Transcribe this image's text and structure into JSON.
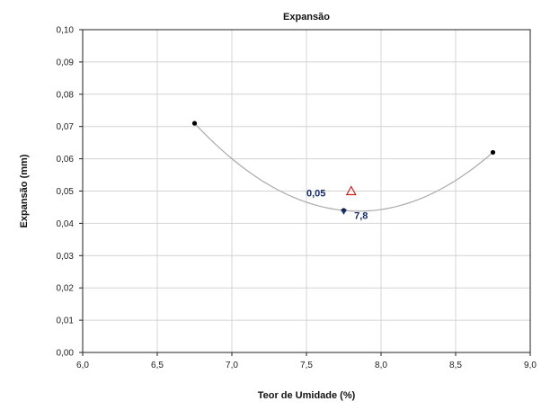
{
  "chart_data": {
    "type": "scatter",
    "title": "Expansão",
    "xlabel": "Teor de Umidade (%)",
    "ylabel": "Expansão (mm)",
    "xlim": [
      6.0,
      9.0
    ],
    "ylim": [
      0.0,
      0.1
    ],
    "x_ticks": [
      "6,0",
      "6,5",
      "7,0",
      "7,5",
      "8,0",
      "8,5",
      "9,0"
    ],
    "y_ticks": [
      "0,00",
      "0,01",
      "0,02",
      "0,03",
      "0,04",
      "0,05",
      "0,06",
      "0,07",
      "0,08",
      "0,09",
      "0,10"
    ],
    "grid": true,
    "series": [
      {
        "points": [
          {
            "x": 6.75,
            "y": 0.071
          },
          {
            "x": 7.75,
            "y": 0.044
          },
          {
            "x": 8.75,
            "y": 0.062
          }
        ],
        "color": "#000000"
      }
    ],
    "trend_color": "#aaaaaa",
    "marker_optimum": {
      "x": 7.8,
      "y": 0.05,
      "color": "#cc2222"
    },
    "annotations": [
      {
        "text": "0,05",
        "x": 7.5,
        "y": 0.0495,
        "color": "#1a2e6b"
      },
      {
        "text": "7,8",
        "x": 7.82,
        "y": 0.0425,
        "color": "#1a2e6b"
      }
    ]
  }
}
